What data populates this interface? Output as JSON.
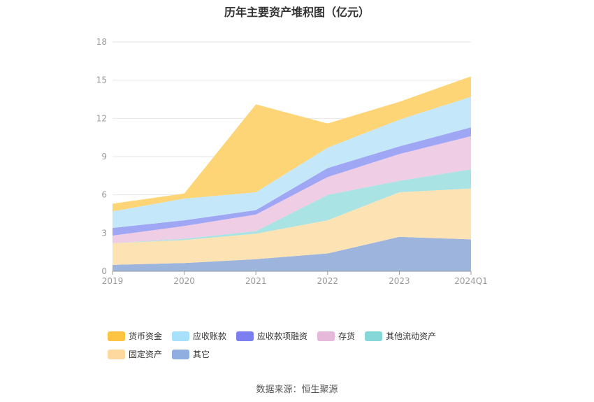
{
  "chart_data": {
    "type": "area",
    "stacked": true,
    "title": "历年主要资产堆积图（亿元）",
    "categories": [
      "2019",
      "2020",
      "2021",
      "2022",
      "2023",
      "2024Q1"
    ],
    "ylim": [
      0,
      18
    ],
    "yticks": [
      "0",
      "3",
      "6",
      "9",
      "12",
      "15",
      "18"
    ],
    "grid": true,
    "legend_position": "bottom",
    "series": [
      {
        "name": "其它",
        "color": "#9db4dd",
        "values": [
          0.5,
          0.65,
          0.95,
          1.4,
          2.7,
          2.5
        ]
      },
      {
        "name": "固定资产",
        "color": "#fde3b4",
        "values": [
          1.7,
          1.8,
          2.0,
          2.6,
          3.5,
          4.0
        ]
      },
      {
        "name": "其他流动资产",
        "color": "#a9e3e3",
        "values": [
          0.0,
          0.1,
          0.2,
          2.0,
          0.9,
          1.5
        ]
      },
      {
        "name": "存货",
        "color": "#efcde4",
        "values": [
          0.6,
          1.0,
          1.3,
          1.4,
          2.1,
          2.6
        ]
      },
      {
        "name": "应收款项融资",
        "color": "#9fa6f4",
        "values": [
          0.6,
          0.45,
          0.35,
          0.7,
          0.6,
          0.7
        ]
      },
      {
        "name": "应收账款",
        "color": "#c4e8fa",
        "values": [
          1.3,
          1.7,
          1.4,
          1.6,
          2.1,
          2.4
        ]
      },
      {
        "name": "货币资金",
        "color": "#fdd577",
        "values": [
          0.6,
          0.4,
          6.9,
          1.9,
          1.4,
          1.6
        ]
      }
    ],
    "legend": [
      {
        "name": "货币资金",
        "color": "#fdc443"
      },
      {
        "name": "应收账款",
        "color": "#a6e0fb"
      },
      {
        "name": "应收款项融资",
        "color": "#7b7ff0"
      },
      {
        "name": "存货",
        "color": "#e6b9da"
      },
      {
        "name": "其他流动资产",
        "color": "#86d8d8"
      },
      {
        "name": "固定资产",
        "color": "#fdd9a0"
      },
      {
        "name": "其它",
        "color": "#91aee0"
      }
    ]
  },
  "source": "数据来源：恒生聚源"
}
